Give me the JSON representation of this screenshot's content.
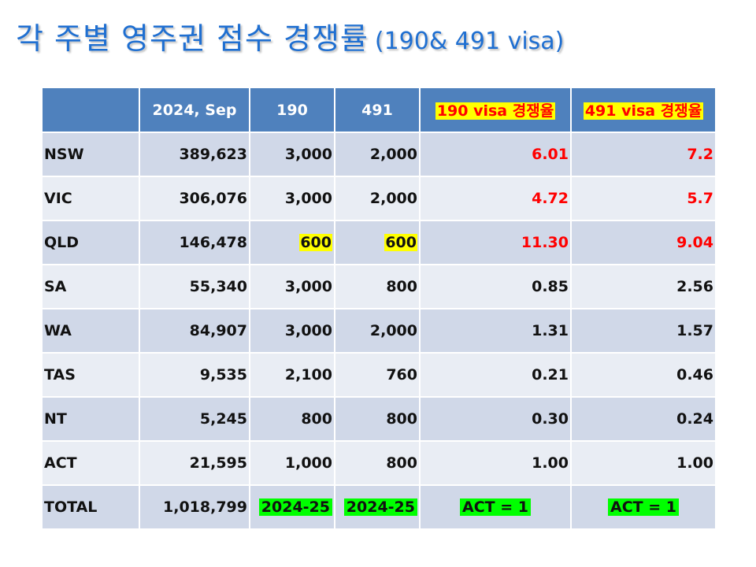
{
  "title": {
    "main": "각 주별 영주권 점수 경쟁률",
    "sub": "(190& 491 visa)"
  },
  "table": {
    "headers": [
      "",
      "2024, Sep",
      "190",
      "491",
      "190 visa 경쟁율",
      "491 visa 경쟁율"
    ],
    "rows": [
      {
        "state": "NSW",
        "pop": "389,623",
        "v190": "3,000",
        "v491": "2,000",
        "r190": "6.01",
        "r491": "7.2"
      },
      {
        "state": "VIC",
        "pop": "306,076",
        "v190": "3,000",
        "v491": "2,000",
        "r190": "4.72",
        "r491": "5.7"
      },
      {
        "state": "QLD",
        "pop": "146,478",
        "v190": "600",
        "v491": "600",
        "r190": "11.30",
        "r491": "9.04"
      },
      {
        "state": "SA",
        "pop": "55,340",
        "v190": "3,000",
        "v491": "800",
        "r190": "0.85",
        "r491": "2.56"
      },
      {
        "state": "WA",
        "pop": "84,907",
        "v190": "3,000",
        "v491": "2,000",
        "r190": "1.31",
        "r491": "1.57"
      },
      {
        "state": "TAS",
        "pop": "9,535",
        "v190": "2,100",
        "v491": "760",
        "r190": "0.21",
        "r491": "0.46"
      },
      {
        "state": "NT",
        "pop": "5,245",
        "v190": "800",
        "v491": "800",
        "r190": "0.30",
        "r491": "0.24"
      },
      {
        "state": "ACT",
        "pop": "21,595",
        "v190": "1,000",
        "v491": "800",
        "r190": "1.00",
        "r491": "1.00"
      }
    ],
    "total": {
      "label": "TOTAL",
      "pop": "1,018,799",
      "v190": "2024-25",
      "v491": "2024-25",
      "r190": "ACT = 1",
      "r491": "ACT = 1"
    }
  },
  "colors": {
    "title": "#1f6fd1",
    "header_bg": "#4f81bd",
    "row_odd": "#d0d8e8",
    "row_even": "#e9edf4",
    "highlight_red": "#ff0000",
    "highlight_yellow": "#ffff00",
    "highlight_green": "#00ff00"
  }
}
